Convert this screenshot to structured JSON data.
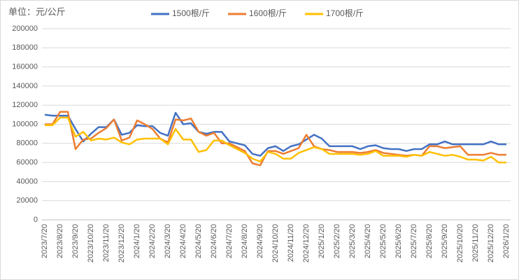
{
  "chart_data": {
    "type": "line",
    "unit_label": "单位：元/公斤",
    "categories": [
      "2023/7/20",
      null,
      "2023/8/20",
      null,
      "2023/9/20",
      null,
      "2023/10/20",
      null,
      "2023/11/20",
      null,
      "2023/12/20",
      null,
      "2024/1/20",
      null,
      "2024/2/20",
      null,
      "2024/3/20",
      null,
      "2024/4/20",
      null,
      "2024/5/20",
      null,
      "2024/6/20",
      null,
      "2024/7/20",
      null,
      "2024/8/20",
      null,
      "2024/9/20",
      null,
      "2024/10/20",
      null,
      "2024/11/20",
      null,
      "2024/12/20",
      null,
      "2025/1/20",
      null,
      "2025/2/20",
      null,
      "2025/3/20",
      null,
      "2025/4/20",
      null,
      "2025/5/20",
      null,
      "2025/6/20",
      null,
      "2025/7/20",
      null,
      "2025/8/20",
      null,
      "2025/9/20",
      null,
      "2025/10/20",
      null,
      "2025/11/20",
      null,
      "2025/12/20",
      null,
      "2026/1/20"
    ],
    "series": [
      {
        "name": "1500根/斤",
        "color": "#4472c4",
        "values": [
          110000,
          109000,
          109000,
          109000,
          95000,
          82000,
          90000,
          97000,
          97000,
          105000,
          89000,
          91000,
          99000,
          98000,
          98000,
          91000,
          88000,
          112000,
          100000,
          101000,
          92000,
          90000,
          92000,
          92000,
          82000,
          80000,
          78000,
          69000,
          67000,
          75000,
          77000,
          72000,
          77000,
          79000,
          84000,
          89000,
          85000,
          77000,
          77000,
          77000,
          77000,
          74000,
          77000,
          78000,
          75000,
          74000,
          74000,
          72000,
          74000,
          74000,
          79000,
          79000,
          82000,
          79000,
          79000,
          79000,
          79000,
          79000,
          82000,
          79000,
          79000
        ]
      },
      {
        "name": "1600根/斤",
        "color": "#ed7d31",
        "values": [
          100000,
          100000,
          113000,
          113000,
          74000,
          84000,
          85000,
          91000,
          96000,
          105000,
          83000,
          86000,
          104000,
          100000,
          95000,
          85000,
          81000,
          105000,
          104000,
          106000,
          92000,
          88000,
          91000,
          80000,
          80000,
          76000,
          72000,
          59000,
          57000,
          72000,
          72000,
          69000,
          72000,
          75000,
          89000,
          77000,
          74000,
          73000,
          71000,
          71000,
          71000,
          70000,
          71000,
          73000,
          70000,
          69000,
          68000,
          67000,
          68000,
          67000,
          77000,
          77000,
          75000,
          76000,
          77000,
          68000,
          68000,
          68000,
          70000,
          68000,
          68000
        ]
      },
      {
        "name": "1700根/斤",
        "color": "#ffc000",
        "values": [
          99000,
          99000,
          107000,
          107000,
          87000,
          92000,
          83000,
          85000,
          84000,
          86000,
          81000,
          79000,
          84000,
          85000,
          85000,
          85000,
          79000,
          95000,
          84000,
          84000,
          71000,
          73000,
          83000,
          83000,
          78000,
          74000,
          70000,
          64000,
          61000,
          71000,
          69000,
          64000,
          64000,
          70000,
          73000,
          76000,
          74000,
          69000,
          69000,
          69000,
          69000,
          68000,
          69000,
          72000,
          67000,
          67000,
          67000,
          66000,
          68000,
          67000,
          71000,
          69000,
          67000,
          68000,
          66000,
          63000,
          63000,
          62000,
          66000,
          60000,
          60000
        ]
      }
    ],
    "ylim": [
      0,
      200000
    ],
    "yticks": [
      0,
      20000,
      40000,
      60000,
      80000,
      100000,
      120000,
      140000,
      160000,
      180000,
      200000
    ],
    "grid": true,
    "legend": "top"
  }
}
